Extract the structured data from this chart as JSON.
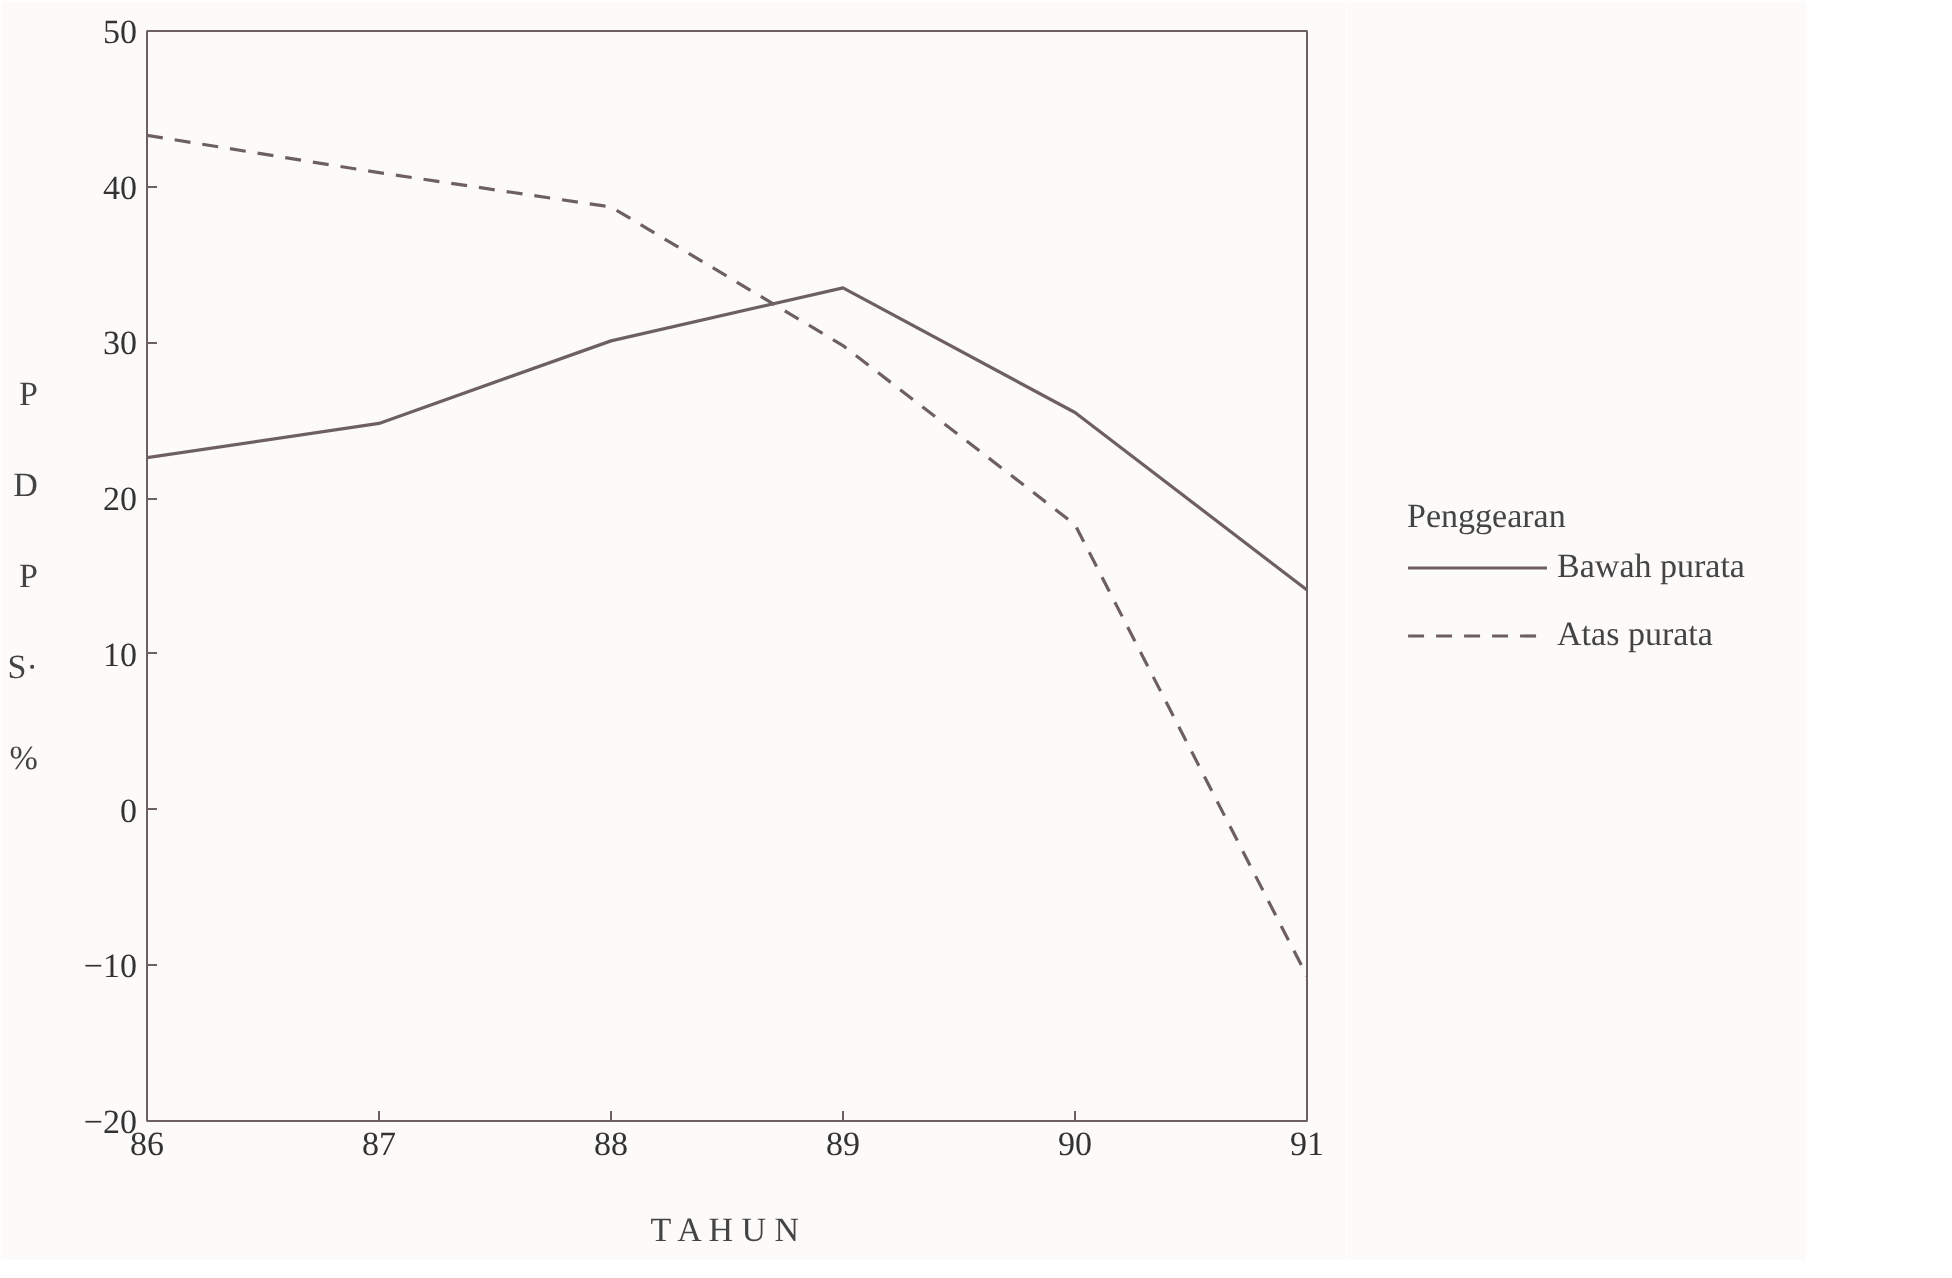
{
  "chart_data": {
    "type": "line",
    "xlabel": "T A H U N",
    "ylabel": "P D P S· %",
    "legend_title": "Penggearan",
    "x": [
      86,
      87,
      88,
      89,
      90,
      91
    ],
    "series": [
      {
        "name": "Bawah purata",
        "color": "#6e6060",
        "line_style": "solid",
        "values": [
          22.6,
          24.8,
          30.1,
          33.5,
          25.5,
          14.1
        ]
      },
      {
        "name": "Atas purata",
        "color": "#6e6060",
        "line_style": "dashed",
        "values": [
          43.3,
          40.9,
          38.7,
          29.8,
          18.3,
          -10.7
        ]
      }
    ],
    "xlim": [
      86,
      91
    ],
    "xticks": [
      86,
      87,
      88,
      89,
      90,
      91
    ],
    "ylim": [
      -20,
      50
    ],
    "yticks": [
      -20,
      -10,
      0,
      10,
      20,
      30,
      40,
      50
    ],
    "grid": false,
    "legend": "right",
    "marker": "none"
  }
}
